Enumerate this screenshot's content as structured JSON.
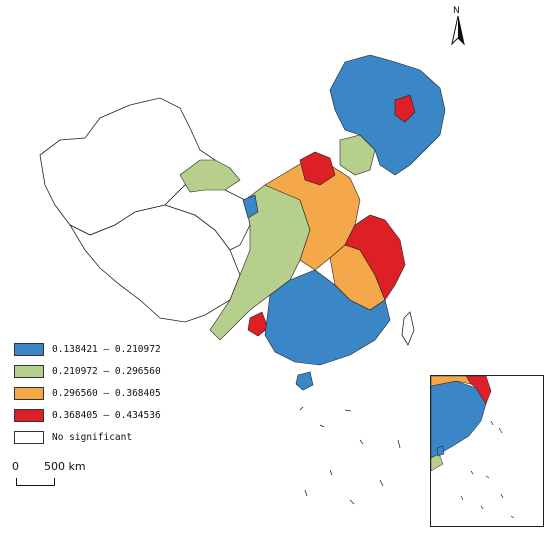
{
  "map": {
    "north_label": "N",
    "legend": [
      {
        "label": "0.138421 — 0.210972",
        "color": "#3b86c6"
      },
      {
        "label": "0.210972 — 0.296560",
        "color": "#b7cf8d"
      },
      {
        "label": "0.296560 — 0.368405",
        "color": "#f5a84a"
      },
      {
        "label": "0.368405 — 0.434536",
        "color": "#dd1f26"
      },
      {
        "label": "No significant",
        "color": "#ffffff"
      }
    ],
    "scale": {
      "zero": "0",
      "distance": "500 km"
    }
  }
}
